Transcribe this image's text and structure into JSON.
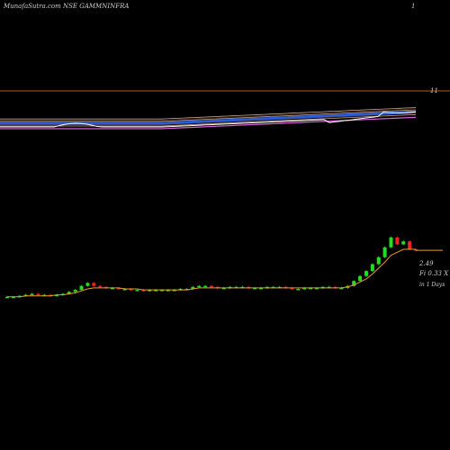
{
  "header": {
    "title": "MunafaSutra.com NSE GAMMNINFRA",
    "corner_mark": "1",
    "panel_mark": "11"
  },
  "price_panel": {
    "price_label": "2.49",
    "change_label": "Fi 0.33 X",
    "days_label": "in 1 Days"
  },
  "colors": {
    "background": "#000000",
    "divider": "#b85a1e",
    "up_candle": "#22dd22",
    "down_candle": "#ee2222",
    "ma_line": "#e8a020",
    "white_line": "#ffffff",
    "blue_band": "#2b5cd8",
    "pink_line": "#e060e0",
    "ribbon_dark": "#5a2a1a",
    "ribbon_light": "#f0d0b0"
  },
  "chart_data": {
    "type": "candlestick",
    "close": [
      2.02,
      2.02,
      2.03,
      2.04,
      2.05,
      2.04,
      2.04,
      2.03,
      2.04,
      2.05,
      2.07,
      2.09,
      2.13,
      2.16,
      2.13,
      2.12,
      2.11,
      2.11,
      2.1,
      2.1,
      2.09,
      2.09,
      2.08,
      2.09,
      2.09,
      2.09,
      2.09,
      2.09,
      2.1,
      2.1,
      2.12,
      2.13,
      2.13,
      2.12,
      2.11,
      2.11,
      2.12,
      2.12,
      2.12,
      2.11,
      2.11,
      2.11,
      2.12,
      2.12,
      2.12,
      2.11,
      2.1,
      2.1,
      2.11,
      2.11,
      2.11,
      2.12,
      2.12,
      2.11,
      2.11,
      2.13,
      2.18,
      2.23,
      2.28,
      2.35,
      2.42,
      2.52,
      2.62,
      2.55,
      2.58,
      2.5,
      2.49
    ],
    "ma": [
      2.02,
      2.02,
      2.02,
      2.03,
      2.03,
      2.03,
      2.03,
      2.03,
      2.04,
      2.04,
      2.05,
      2.06,
      2.08,
      2.1,
      2.11,
      2.11,
      2.11,
      2.11,
      2.11,
      2.1,
      2.1,
      2.1,
      2.09,
      2.09,
      2.09,
      2.09,
      2.09,
      2.09,
      2.09,
      2.09,
      2.1,
      2.11,
      2.11,
      2.11,
      2.11,
      2.11,
      2.11,
      2.11,
      2.11,
      2.11,
      2.11,
      2.11,
      2.11,
      2.11,
      2.11,
      2.11,
      2.11,
      2.11,
      2.11,
      2.11,
      2.11,
      2.11,
      2.11,
      2.11,
      2.11,
      2.12,
      2.14,
      2.17,
      2.2,
      2.25,
      2.31,
      2.37,
      2.44,
      2.47,
      2.5,
      2.5,
      2.5
    ],
    "ylim": [
      1.2,
      3.2
    ]
  }
}
